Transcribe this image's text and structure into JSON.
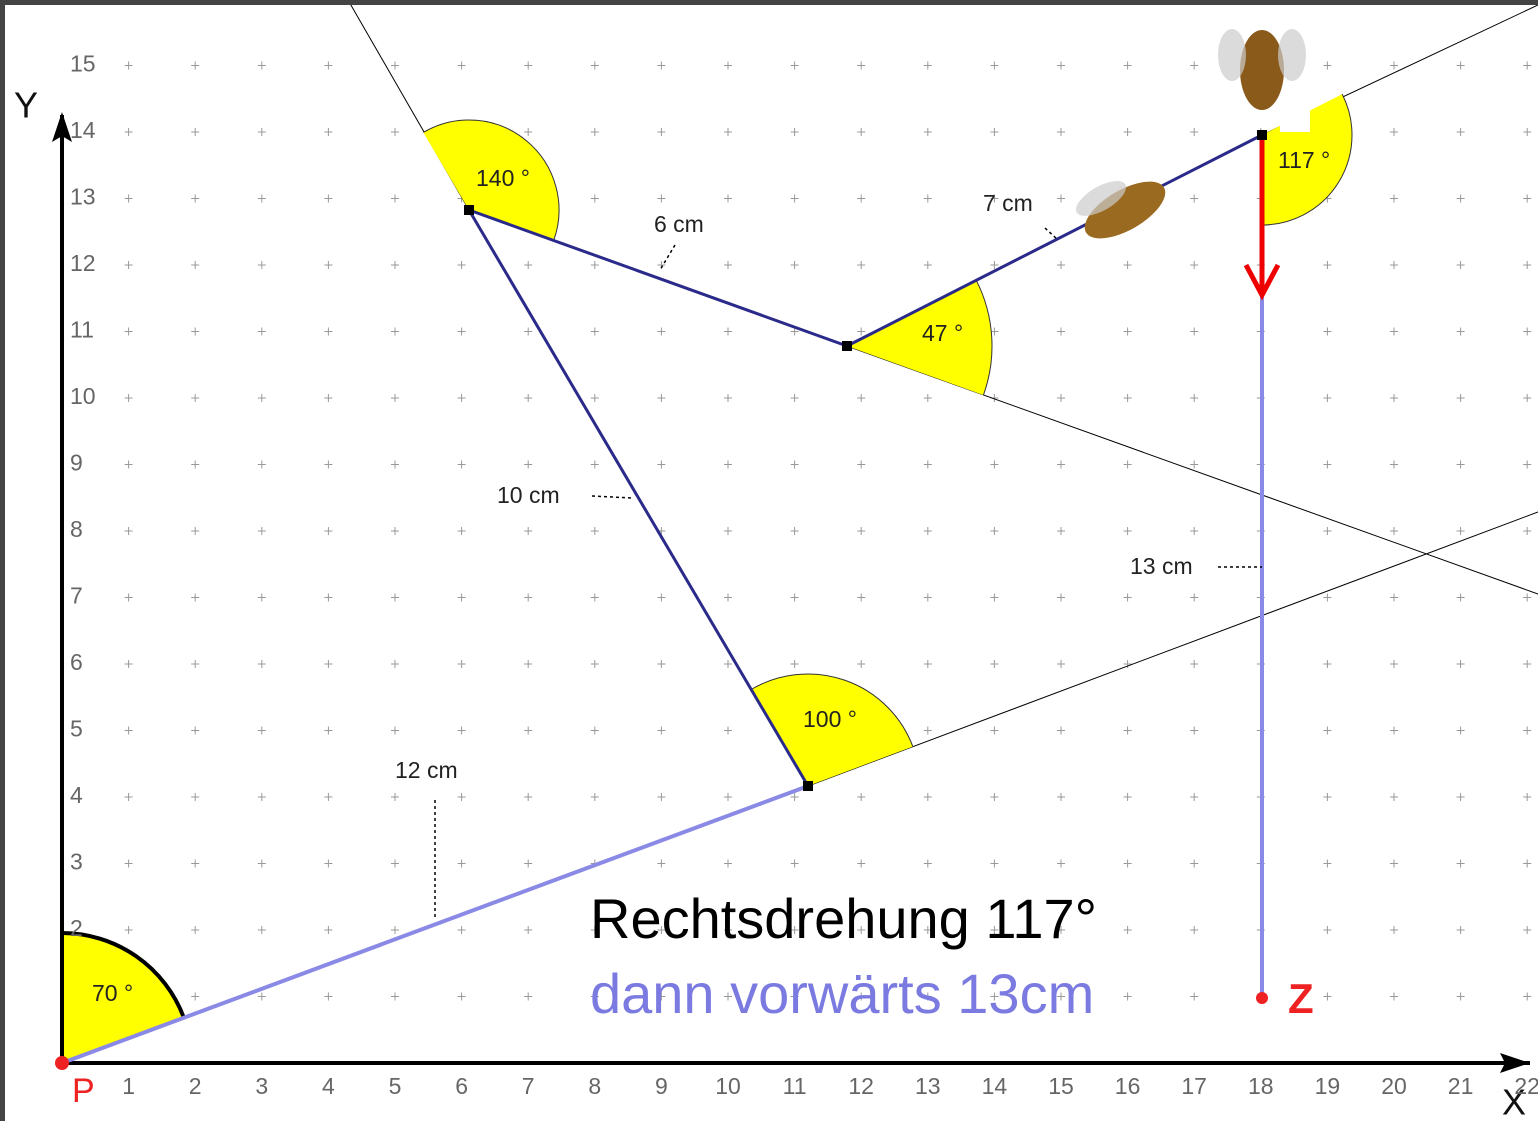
{
  "axes": {
    "x_label": "X",
    "y_label": "Y",
    "x_ticks": [
      1,
      2,
      3,
      4,
      5,
      6,
      7,
      8,
      9,
      10,
      11,
      12,
      13,
      14,
      15,
      16,
      17,
      18,
      19,
      20,
      21,
      22
    ],
    "y_ticks": [
      2,
      3,
      4,
      5,
      6,
      7,
      8,
      9,
      10,
      11,
      12,
      13,
      14,
      15
    ]
  },
  "points": {
    "start": "P",
    "end": "Z"
  },
  "angles": [
    "70 °",
    "100 °",
    "140 °",
    "47 °",
    "117 °"
  ],
  "lengths": [
    "12 cm",
    "10 cm",
    "6 cm",
    "7 cm",
    "13 cm"
  ],
  "instruction": {
    "line1": "Rechtsdrehung  117°",
    "line2": "dann vorwärts 13cm"
  }
}
